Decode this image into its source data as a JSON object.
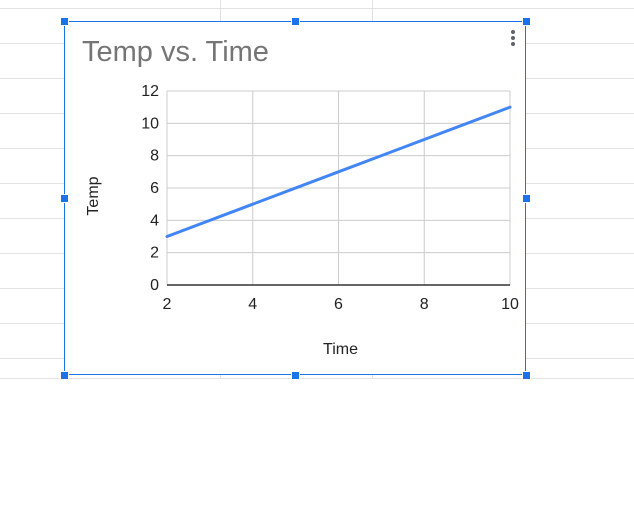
{
  "chart_data": {
    "type": "line",
    "title": "Temp vs. Time",
    "xlabel": "Time",
    "ylabel": "Temp",
    "x": [
      2,
      4,
      6,
      8,
      10
    ],
    "series": [
      {
        "values": [
          3,
          5,
          7,
          9,
          11
        ]
      }
    ],
    "xlim": [
      2,
      10
    ],
    "ylim": [
      0,
      12
    ],
    "xticks": [
      2,
      4,
      6,
      8,
      10
    ],
    "yticks": [
      0,
      2,
      4,
      6,
      8,
      10,
      12
    ],
    "grid": true,
    "line_color": "#4285f4",
    "gridline_color": "#cccccc",
    "title_color": "#757575"
  },
  "ui": {
    "accent_color": "#1a73e8",
    "menu_icon": "kebab-menu-icon"
  }
}
